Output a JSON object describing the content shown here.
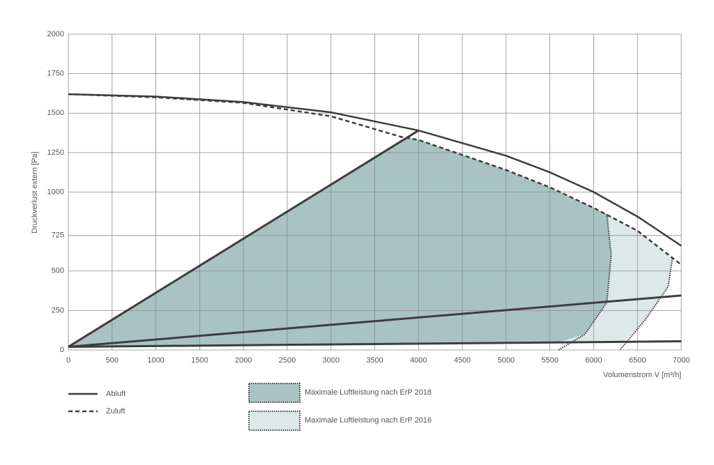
{
  "chart_data": {
    "type": "line",
    "ylabel": "Druckverlust extern [Pa]",
    "xlabel": "Volumenstrom V [m³/h]",
    "xlim": [
      0,
      7000
    ],
    "ylim": [
      0,
      2000
    ],
    "xticks": [
      0,
      500,
      1000,
      1500,
      2000,
      2500,
      3000,
      3500,
      4000,
      4500,
      5000,
      5500,
      6000,
      6500,
      7000
    ],
    "yticks": [
      0,
      250,
      500,
      725,
      1000,
      1250,
      1500,
      1750,
      2000
    ],
    "grid": true,
    "series": [
      {
        "name": "Abluft",
        "color": "#3d3d3d",
        "style": "solid",
        "x": [
          0,
          1000,
          2000,
          3000,
          4000,
          5000,
          5500,
          6000,
          6500,
          7000
        ],
        "values": [
          1620,
          1605,
          1570,
          1505,
          1390,
          1230,
          1125,
          1000,
          845,
          660
        ]
      },
      {
        "name": "Zuluft",
        "color": "#3d3d3d",
        "style": "dashed",
        "x": [
          0,
          1000,
          2000,
          3000,
          3800,
          4000,
          5000,
          5500,
          6000,
          6500,
          7000
        ],
        "values": [
          1620,
          1600,
          1565,
          1480,
          1350,
          1330,
          1140,
          1030,
          900,
          755,
          540
        ]
      }
    ],
    "lines": [
      {
        "color": "#3d3d3d",
        "x": [
          0,
          4000
        ],
        "values": [
          20,
          1390
        ]
      },
      {
        "color": "#3d3d3d",
        "x": [
          0,
          7000
        ],
        "values": [
          20,
          345
        ]
      },
      {
        "color": "#3d3d3d",
        "x": [
          0,
          7000
        ],
        "values": [
          20,
          55
        ]
      }
    ],
    "areas": [
      {
        "name": "Maximale Luftleistung nach ErP 2018",
        "color": "#a8c3c2",
        "x": [
          0,
          3880,
          4000,
          5000,
          5500,
          6000,
          6150,
          6200,
          6150,
          5900,
          5600
        ],
        "values": [
          20,
          1345,
          1330,
          1140,
          1030,
          900,
          860,
          600,
          300,
          100,
          48
        ]
      },
      {
        "name": "Maximale Luftleistung nach ErP 2016",
        "color": "#dce9e8",
        "x": [
          6150,
          6500,
          6900,
          6850,
          6600,
          6350,
          5600,
          5900,
          6150,
          6200
        ],
        "values": [
          860,
          755,
          580,
          400,
          200,
          52,
          48,
          100,
          300,
          600
        ]
      }
    ],
    "boundaries": [
      {
        "color": "#3d3d3d",
        "x": [
          6150,
          6200,
          6150,
          5900,
          5600
        ],
        "values": [
          860,
          600,
          300,
          100,
          0
        ]
      },
      {
        "color": "#3d3d3d",
        "x": [
          6900,
          6850,
          6600,
          6300
        ],
        "values": [
          580,
          400,
          200,
          0
        ]
      }
    ]
  }
}
